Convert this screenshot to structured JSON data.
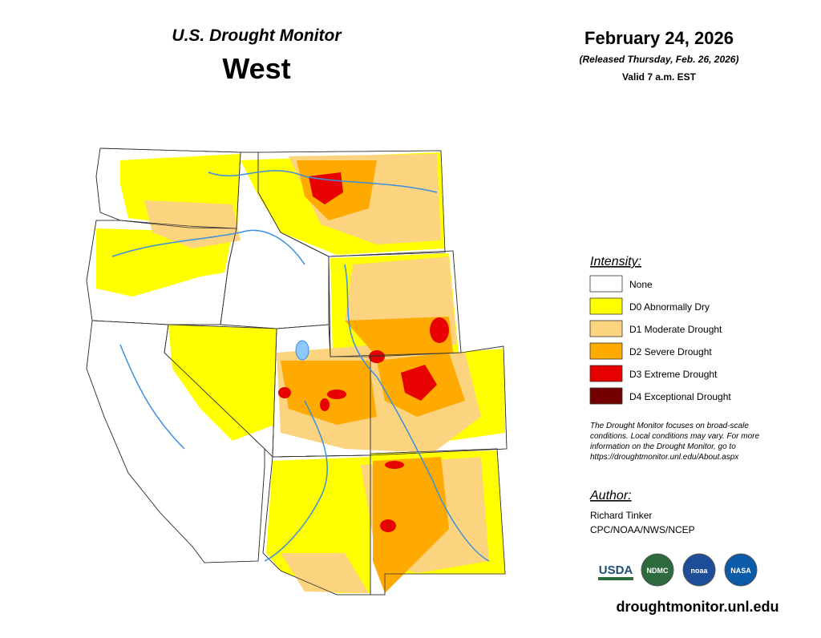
{
  "header": {
    "title": "U.S. Drought Monitor",
    "region": "West",
    "date": "February 24, 2026",
    "released": "(Released Thursday, Feb. 26, 2026)",
    "valid": "Valid 7 a.m. EST"
  },
  "legend": {
    "title": "Intensity:",
    "items": [
      {
        "label": "None",
        "color": "#ffffff"
      },
      {
        "label": "D0 Abnormally Dry",
        "color": "#ffff00"
      },
      {
        "label": "D1 Moderate Drought",
        "color": "#fcd37f"
      },
      {
        "label": "D2 Severe Drought",
        "color": "#ffaa00"
      },
      {
        "label": "D3 Extreme Drought",
        "color": "#e60000"
      },
      {
        "label": "D4 Exceptional Drought",
        "color": "#730000"
      }
    ]
  },
  "note": [
    "The Drought Monitor focuses on broad-scale",
    "conditions. Local conditions may vary. For more",
    "information on the Drought Monitor, go to",
    "https://droughtmonitor.unl.edu/About.aspx"
  ],
  "author": {
    "title": "Author:",
    "name": "Richard Tinker",
    "org": "CPC/NOAA/NWS/NCEP"
  },
  "logos": [
    "USDA",
    "NDMC",
    "noaa",
    "NASA"
  ],
  "url": "droughtmonitor.unl.edu"
}
